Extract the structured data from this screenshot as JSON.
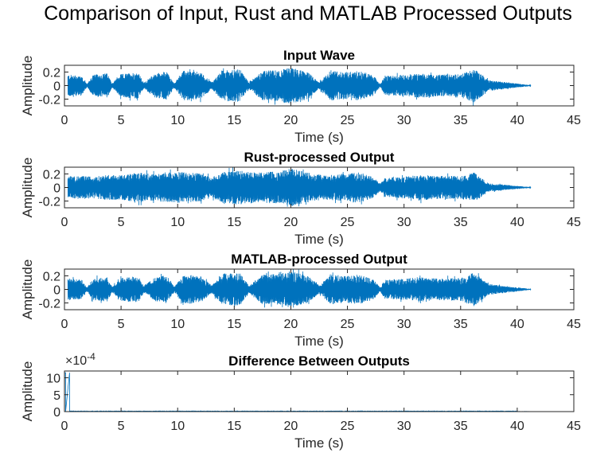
{
  "figure_title": "Comparison of Input, Rust and MATLAB Processed Outputs",
  "chart_data": [
    {
      "type": "line",
      "title": "Input Wave",
      "xlabel": "Time (s)",
      "ylabel": "Amplitude",
      "xlim": [
        0,
        45
      ],
      "ylim": [
        -0.3,
        0.3
      ],
      "xticks": [
        0,
        5,
        10,
        15,
        20,
        25,
        30,
        35,
        40,
        45
      ],
      "xtick_labels": [
        "0",
        "5",
        "10",
        "15",
        "20",
        "25",
        "30",
        "35",
        "40",
        "45"
      ],
      "yticks": [
        -0.2,
        0,
        0.2
      ],
      "ytick_labels": [
        "-0.2",
        "0",
        "0.2"
      ],
      "exponent_label": "",
      "color": "#0072BD",
      "series": [
        {
          "x_start": 0.3,
          "x_end": 41.2,
          "envelope": [
            [
              0.3,
              0.16
            ],
            [
              1.5,
              0.15
            ],
            [
              2.0,
              0.02
            ],
            [
              2.5,
              0.16
            ],
            [
              3.8,
              0.18
            ],
            [
              4.2,
              0.03
            ],
            [
              5.0,
              0.17
            ],
            [
              6.5,
              0.2
            ],
            [
              7.0,
              0.04
            ],
            [
              8.0,
              0.18
            ],
            [
              9.0,
              0.21
            ],
            [
              9.7,
              0.03
            ],
            [
              10.5,
              0.22
            ],
            [
              12.0,
              0.2
            ],
            [
              13.0,
              0.05
            ],
            [
              14.0,
              0.23
            ],
            [
              15.5,
              0.24
            ],
            [
              16.3,
              0.05
            ],
            [
              17.5,
              0.22
            ],
            [
              19.0,
              0.23
            ],
            [
              20.0,
              0.27
            ],
            [
              21.5,
              0.2
            ],
            [
              22.5,
              0.05
            ],
            [
              23.5,
              0.22
            ],
            [
              25.0,
              0.2
            ],
            [
              26.0,
              0.22
            ],
            [
              27.3,
              0.15
            ],
            [
              27.9,
              0.02
            ],
            [
              28.3,
              0.14
            ],
            [
              30.0,
              0.16
            ],
            [
              31.5,
              0.18
            ],
            [
              33.0,
              0.16
            ],
            [
              35.0,
              0.17
            ],
            [
              36.2,
              0.25
            ],
            [
              37.5,
              0.08
            ],
            [
              39.0,
              0.05
            ],
            [
              40.5,
              0.02
            ],
            [
              41.2,
              0.005
            ]
          ]
        }
      ]
    },
    {
      "type": "line",
      "title": "Rust-processed Output",
      "xlabel": "Time (s)",
      "ylabel": "Amplitude",
      "xlim": [
        0,
        45
      ],
      "ylim": [
        -0.3,
        0.3
      ],
      "xticks": [
        0,
        5,
        10,
        15,
        20,
        25,
        30,
        35,
        40,
        45
      ],
      "xtick_labels": [
        "0",
        "5",
        "10",
        "15",
        "20",
        "25",
        "30",
        "35",
        "40",
        "45"
      ],
      "yticks": [
        -0.2,
        0,
        0.2
      ],
      "ytick_labels": [
        "-0.2",
        "0",
        "0.2"
      ],
      "exponent_label": "",
      "color": "#0072BD",
      "series": [
        {
          "x_start": 0.3,
          "x_end": 41.2,
          "envelope": [
            [
              0.3,
              0.16
            ],
            [
              1.5,
              0.17
            ],
            [
              2.5,
              0.16
            ],
            [
              4.0,
              0.19
            ],
            [
              5.0,
              0.18
            ],
            [
              6.5,
              0.22
            ],
            [
              8.0,
              0.2
            ],
            [
              9.0,
              0.22
            ],
            [
              10.5,
              0.23
            ],
            [
              12.0,
              0.21
            ],
            [
              13.0,
              0.15
            ],
            [
              14.0,
              0.23
            ],
            [
              15.5,
              0.25
            ],
            [
              17.0,
              0.22
            ],
            [
              19.0,
              0.24
            ],
            [
              20.0,
              0.28
            ],
            [
              21.5,
              0.22
            ],
            [
              23.0,
              0.18
            ],
            [
              25.0,
              0.2
            ],
            [
              26.0,
              0.23
            ],
            [
              27.3,
              0.15
            ],
            [
              27.9,
              0.06
            ],
            [
              28.3,
              0.14
            ],
            [
              30.0,
              0.16
            ],
            [
              31.5,
              0.19
            ],
            [
              33.0,
              0.17
            ],
            [
              35.0,
              0.17
            ],
            [
              36.2,
              0.22
            ],
            [
              37.5,
              0.06
            ],
            [
              39.0,
              0.04
            ],
            [
              40.5,
              0.015
            ],
            [
              41.2,
              0.005
            ]
          ]
        }
      ]
    },
    {
      "type": "line",
      "title": "MATLAB-processed Output",
      "xlabel": "Time (s)",
      "ylabel": "Amplitude",
      "xlim": [
        0,
        45
      ],
      "ylim": [
        -0.3,
        0.3
      ],
      "xticks": [
        0,
        5,
        10,
        15,
        20,
        25,
        30,
        35,
        40,
        45
      ],
      "xtick_labels": [
        "0",
        "5",
        "10",
        "15",
        "20",
        "25",
        "30",
        "35",
        "40",
        "45"
      ],
      "yticks": [
        -0.2,
        0,
        0.2
      ],
      "ytick_labels": [
        "-0.2",
        "0",
        "0.2"
      ],
      "exponent_label": "",
      "color": "#0072BD",
      "series": [
        {
          "x_start": 0.3,
          "x_end": 41.2,
          "envelope": [
            [
              0.3,
              0.16
            ],
            [
              1.5,
              0.15
            ],
            [
              2.0,
              0.03
            ],
            [
              2.5,
              0.16
            ],
            [
              3.8,
              0.18
            ],
            [
              4.2,
              0.04
            ],
            [
              5.0,
              0.17
            ],
            [
              6.5,
              0.2
            ],
            [
              7.0,
              0.05
            ],
            [
              8.0,
              0.18
            ],
            [
              9.0,
              0.21
            ],
            [
              9.7,
              0.04
            ],
            [
              10.5,
              0.22
            ],
            [
              12.0,
              0.2
            ],
            [
              13.0,
              0.06
            ],
            [
              14.0,
              0.23
            ],
            [
              15.5,
              0.24
            ],
            [
              16.3,
              0.06
            ],
            [
              17.5,
              0.22
            ],
            [
              19.0,
              0.23
            ],
            [
              20.0,
              0.27
            ],
            [
              21.5,
              0.2
            ],
            [
              22.5,
              0.06
            ],
            [
              23.5,
              0.22
            ],
            [
              25.0,
              0.2
            ],
            [
              26.0,
              0.22
            ],
            [
              27.3,
              0.15
            ],
            [
              27.9,
              0.03
            ],
            [
              28.3,
              0.14
            ],
            [
              30.0,
              0.16
            ],
            [
              31.5,
              0.18
            ],
            [
              33.0,
              0.16
            ],
            [
              35.0,
              0.17
            ],
            [
              36.2,
              0.25
            ],
            [
              37.5,
              0.08
            ],
            [
              39.0,
              0.05
            ],
            [
              40.5,
              0.02
            ],
            [
              41.2,
              0.005
            ]
          ]
        }
      ]
    },
    {
      "type": "line",
      "title": "Difference Between Outputs",
      "xlabel": "Time (s)",
      "ylabel": "Amplitude",
      "xlim": [
        0,
        45
      ],
      "ylim": [
        0,
        12
      ],
      "xticks": [
        0,
        5,
        10,
        15,
        20,
        25,
        30,
        35,
        40,
        45
      ],
      "xtick_labels": [
        "0",
        "5",
        "10",
        "15",
        "20",
        "25",
        "30",
        "35",
        "40",
        "45"
      ],
      "yticks": [
        0,
        5,
        10
      ],
      "ytick_labels": [
        "0",
        "5",
        "10"
      ],
      "exponent_label": "×10",
      "exponent_power": "-4",
      "color": "#0072BD",
      "series": [
        {
          "x_start": 0.0,
          "x_end": 41.2,
          "spike_x": [
            0.1,
            0.45
          ],
          "spike_y": 11.5,
          "floor": 0.2,
          "envelope": [
            [
              0.0,
              11.5
            ],
            [
              0.5,
              0.3
            ],
            [
              41.2,
              0.05
            ]
          ]
        }
      ]
    }
  ]
}
